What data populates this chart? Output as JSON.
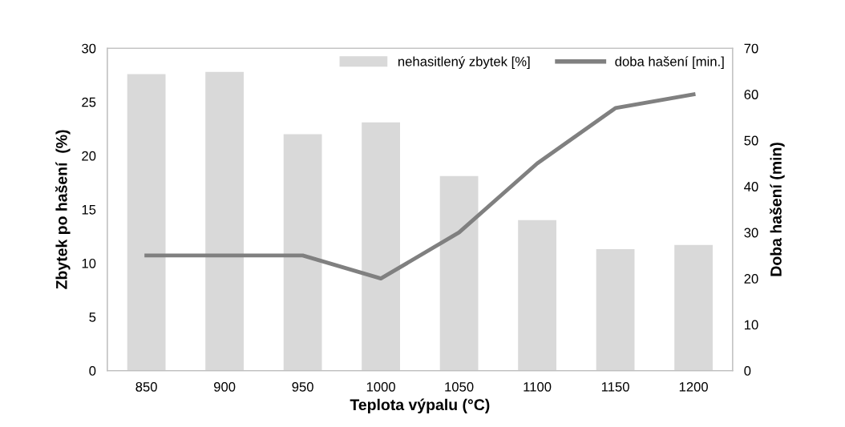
{
  "chart_data": {
    "type": "bar",
    "xlabel": "Teplota výpalu (°C)",
    "ylabel": "Zbytek po hašení  (%)",
    "y2label": "Doba hašení (min)",
    "categories": [
      "850",
      "900",
      "950",
      "1000",
      "1050",
      "1100",
      "1150",
      "1200"
    ],
    "series": [
      {
        "name": "nehasitlený zbytek [%]",
        "color": "#d9d9d9",
        "values": [
          27.6,
          27.8,
          22.0,
          23.1,
          18.1,
          14.0,
          11.3,
          11.7
        ]
      },
      {
        "name": "doba hašení [min.]",
        "color": "#808080",
        "type": "line",
        "axis": "y2",
        "values": [
          25,
          25,
          25,
          20,
          30,
          45,
          57,
          60
        ]
      }
    ],
    "ylim": [
      0,
      30
    ],
    "yticks": [
      0,
      5,
      10,
      15,
      20,
      25,
      30
    ],
    "y2lim": [
      0,
      70
    ],
    "y2ticks": [
      0,
      10,
      20,
      30,
      40,
      50,
      60,
      70
    ],
    "grid": false,
    "legend": "top right",
    "marker": "none",
    "line_style": "solid"
  }
}
